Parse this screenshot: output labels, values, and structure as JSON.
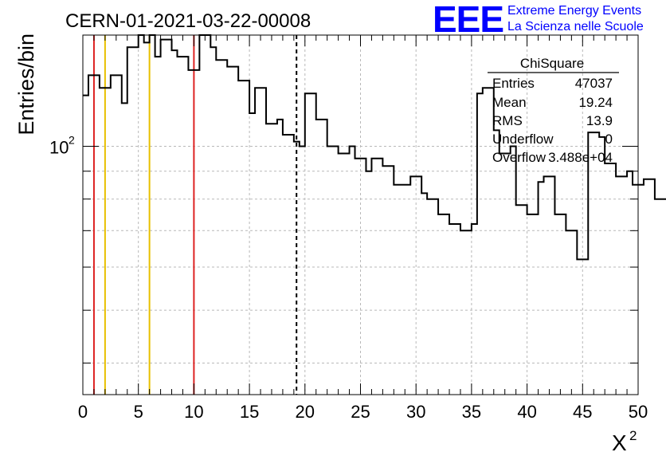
{
  "title": "CERN-01-2021-03-22-00008",
  "logo": {
    "text": "EEE",
    "line1": "Extreme Energy Events",
    "line2": "La Scienza nelle Scuole",
    "color": "#0000ff"
  },
  "stats": {
    "name": "ChiSquare",
    "rows": [
      {
        "label": "Entries",
        "value": "47037"
      },
      {
        "label": "Mean",
        "value": "19.24"
      },
      {
        "label": "RMS",
        "value": "13.9"
      },
      {
        "label": "Underflow",
        "value": "0"
      },
      {
        "label": "Overflow",
        "value": "3.488e+04"
      }
    ]
  },
  "chart_data": {
    "type": "step",
    "xlabel": "X",
    "xlabel_superscript": "2",
    "ylabel": "Entries/bin",
    "xlim": [
      0,
      50
    ],
    "ylim": [
      35,
      160
    ],
    "log_y": true,
    "grid": true,
    "x_ticks": [
      0,
      5,
      10,
      15,
      20,
      25,
      30,
      35,
      40,
      45,
      50
    ],
    "y_tick_labels": [
      {
        "value": 100,
        "base": "10",
        "exp": "2"
      }
    ],
    "bin_width": 0.5,
    "values": [
      124,
      135,
      135,
      128,
      128,
      135,
      135,
      120,
      152,
      152,
      175,
      155,
      165,
      146,
      157,
      157,
      150,
      146,
      146,
      138,
      138,
      166,
      166,
      152,
      144,
      144,
      140,
      140,
      132,
      132,
      115,
      128,
      128,
      110,
      110,
      112,
      105,
      105,
      102,
      100,
      125,
      125,
      112,
      112,
      100,
      100,
      97,
      97,
      100,
      95,
      95,
      90,
      95,
      95,
      92,
      92,
      85,
      85,
      85,
      88,
      88,
      82,
      80,
      80,
      75,
      75,
      72,
      72,
      70,
      70,
      72,
      125,
      128,
      128,
      107,
      97,
      97,
      100,
      78,
      78,
      75,
      75,
      86,
      88,
      88,
      75,
      75,
      70,
      70,
      62,
      62,
      106,
      106,
      104,
      93,
      93,
      88,
      88,
      90,
      85,
      85,
      87,
      87,
      80,
      80,
      80,
      60,
      60,
      60,
      60,
      65,
      65,
      60,
      60,
      180,
      180,
      155,
      155,
      137,
      137,
      130,
      120,
      120,
      125,
      125,
      115,
      115,
      100,
      100,
      105,
      105,
      90,
      90,
      102,
      102,
      85,
      85,
      128,
      128,
      105,
      98,
      98,
      92,
      92,
      85,
      85,
      105,
      105,
      85,
      85,
      55,
      55,
      57,
      57,
      52,
      52,
      50,
      50,
      56,
      56,
      48,
      48,
      132,
      132,
      115,
      96,
      96,
      98,
      98,
      78,
      78,
      88,
      88,
      75,
      75,
      68,
      68,
      56,
      56,
      68,
      68,
      60,
      60,
      52,
      52,
      56,
      56,
      45,
      45,
      57,
      57,
      47,
      47,
      47,
      59,
      59,
      55,
      55,
      50,
      50
    ],
    "series_color": "#000000",
    "vertical_lines": [
      {
        "x": 1,
        "color": "#dd2222",
        "style": "solid"
      },
      {
        "x": 2,
        "color": "#e8c000",
        "style": "solid"
      },
      {
        "x": 6,
        "color": "#e8c000",
        "style": "solid"
      },
      {
        "x": 10,
        "color": "#dd2222",
        "style": "solid"
      },
      {
        "x": 19.24,
        "color": "#000000",
        "style": "dashed"
      }
    ]
  }
}
